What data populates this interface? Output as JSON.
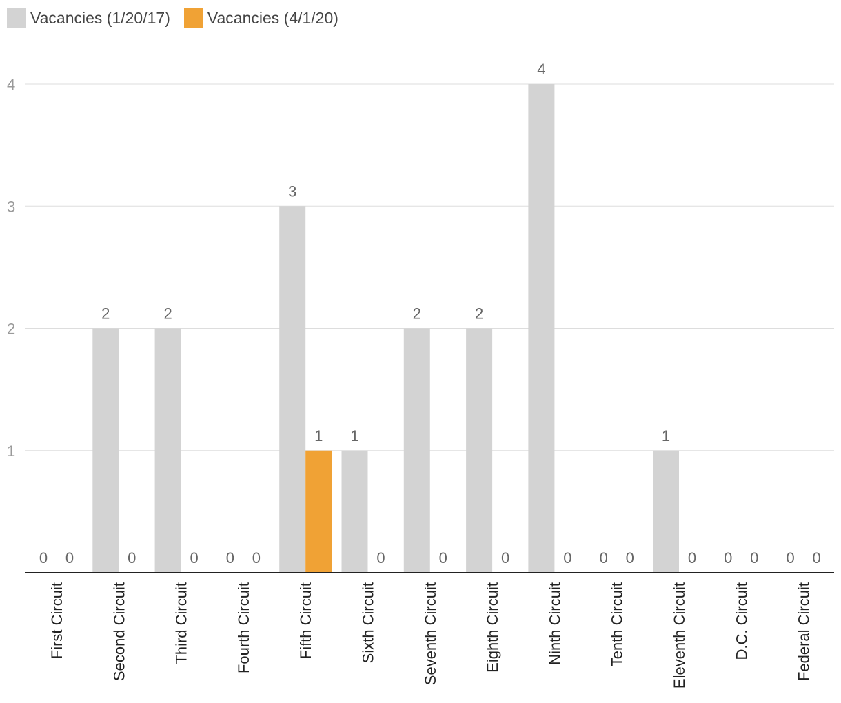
{
  "colors": {
    "series1": "#d3d3d3",
    "series2": "#f0a235",
    "grid": "#dddddd",
    "axis": "#222222"
  },
  "legend": {
    "placement": "top-left",
    "item1": "Vacancies (1/20/17)",
    "item2": "Vacancies (4/1/20)"
  },
  "chart_data": {
    "type": "bar",
    "categories": [
      "First Circuit",
      "Second Circuit",
      "Third Circuit",
      "Fourth Circuit",
      "Fifth Circuit",
      "Sixth Circuit",
      "Seventh Circuit",
      "Eighth Circuit",
      "Ninth Circuit",
      "Tenth Circuit",
      "Eleventh Circuit",
      "D.C. Circuit",
      "Federal Circuit"
    ],
    "series": [
      {
        "name": "Vacancies (1/20/17)",
        "values": [
          0,
          2,
          2,
          0,
          3,
          1,
          2,
          2,
          4,
          0,
          1,
          0,
          0
        ]
      },
      {
        "name": "Vacancies (4/1/20)",
        "values": [
          0,
          0,
          0,
          0,
          1,
          0,
          0,
          0,
          0,
          0,
          0,
          0,
          0
        ]
      }
    ],
    "yticks": [
      1,
      2,
      3,
      4
    ],
    "ylim": [
      0,
      4
    ],
    "grid": true,
    "data_labels": true,
    "title": "",
    "xlabel": "",
    "ylabel": ""
  }
}
